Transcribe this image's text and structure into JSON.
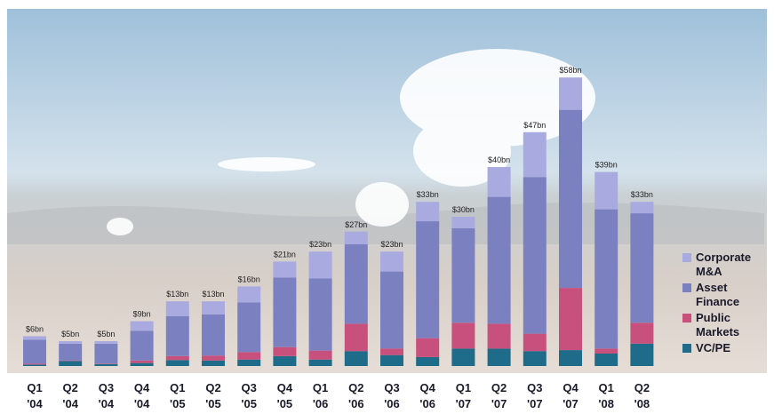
{
  "chart_data": {
    "type": "stacked-bar",
    "categories": [
      "Q1 '04",
      "Q2 '04",
      "Q3 '04",
      "Q4 '04",
      "Q1 '05",
      "Q2 '05",
      "Q3 '05",
      "Q4 '05",
      "Q1 '06",
      "Q2 '06",
      "Q3 '06",
      "Q4 '06",
      "Q1 '07",
      "Q2 '07",
      "Q3 '07",
      "Q4 '07",
      "Q1 '08",
      "Q2 '08"
    ],
    "series": [
      {
        "name": "VC/PE",
        "color": "#1f6b8a",
        "values": [
          0.3,
          1,
          0.4,
          0.6,
          1.2,
          1.1,
          1.3,
          2,
          1.3,
          3,
          2.2,
          1.8,
          3.5,
          3.5,
          3,
          3.2,
          2.5,
          4.5
        ]
      },
      {
        "name": "Public Markets",
        "color": "#c8507c",
        "values": [
          0.2,
          0.1,
          0.1,
          0.5,
          0.8,
          1,
          1.5,
          1.8,
          1.8,
          5.5,
          1.3,
          3.8,
          5.2,
          5,
          3.5,
          12.5,
          1,
          4.2
        ]
      },
      {
        "name": "Asset Finance",
        "color": "#7b80c0",
        "values": [
          4.8,
          3.4,
          4,
          6,
          8,
          8.3,
          10,
          14,
          14.5,
          16,
          15.5,
          23.5,
          19,
          25.5,
          31.5,
          35.8,
          28,
          22
        ]
      },
      {
        "name": "Corporate M&A",
        "color": "#a9abe0",
        "values": [
          0.7,
          0.5,
          0.5,
          1.9,
          3,
          2.6,
          3.2,
          3.2,
          5.4,
          2.5,
          4,
          3.9,
          2.3,
          6,
          9,
          6.5,
          7.5,
          2.3
        ]
      }
    ],
    "totals": {
      "values": [
        6,
        5,
        5,
        9,
        13,
        13,
        16,
        21,
        23,
        27,
        23,
        33,
        30,
        40,
        47,
        58,
        39,
        33
      ],
      "value_labels": [
        "$6bn",
        "$5bn",
        "$5bn",
        "$9bn",
        "$13bn",
        "$13bn",
        "$16bn",
        "$21bn",
        "$23bn",
        "$27bn",
        "$23bn",
        "$33bn",
        "$30bn",
        "$40bn",
        "$47bn",
        "$58bn",
        "$39bn",
        "$33bn"
      ]
    },
    "legend": "right"
  }
}
